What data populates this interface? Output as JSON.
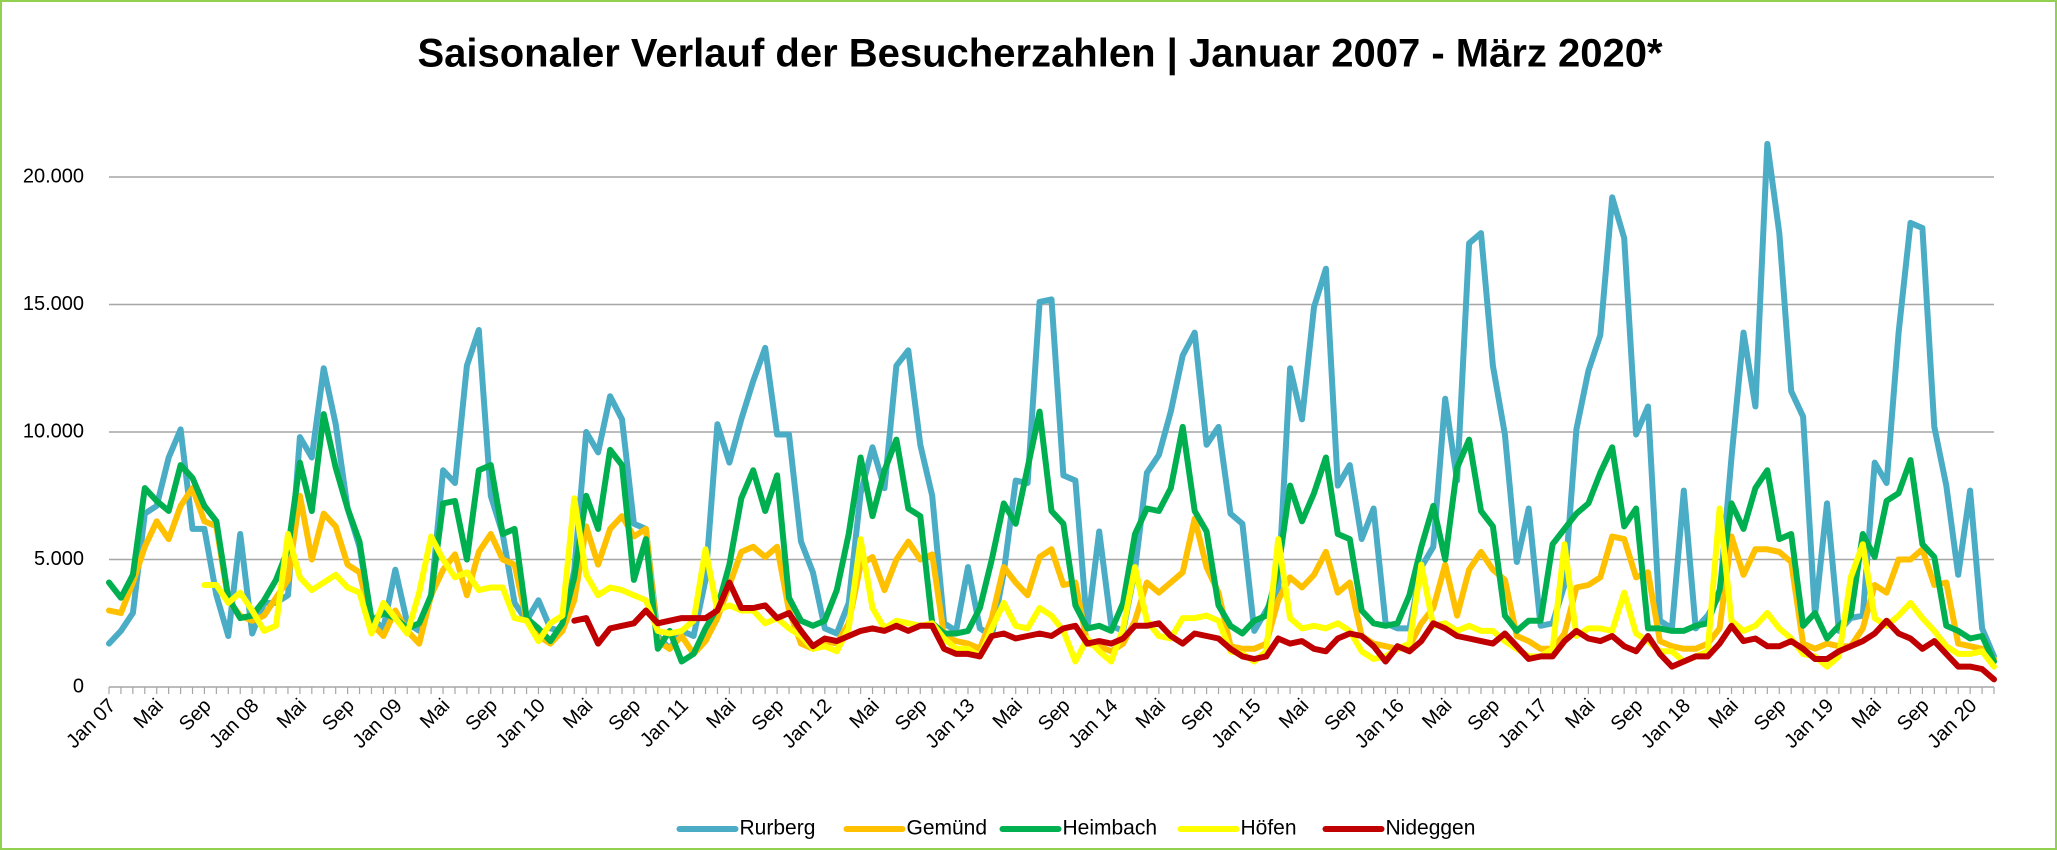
{
  "chart_data": {
    "type": "line",
    "title": "Saisonaler Verlauf der Besucherzahlen | Januar 2007 - März 2020*",
    "categories": [
      "Jan 07",
      null,
      null,
      null,
      "Mai",
      null,
      null,
      null,
      "Sep",
      null,
      null,
      null,
      "Jan 08",
      null,
      null,
      null,
      "Mai",
      null,
      null,
      null,
      "Sep",
      null,
      null,
      null,
      "Jan 09",
      null,
      null,
      null,
      "Mai",
      null,
      null,
      null,
      "Sep",
      null,
      null,
      null,
      "Jan 10",
      null,
      null,
      null,
      "Mai",
      null,
      null,
      null,
      "Sep",
      null,
      null,
      null,
      "Jan 11",
      null,
      null,
      null,
      "Mai",
      null,
      null,
      null,
      "Sep",
      null,
      null,
      null,
      "Jan 12",
      null,
      null,
      null,
      "Mai",
      null,
      null,
      null,
      "Sep",
      null,
      null,
      null,
      "Jan 13",
      null,
      null,
      null,
      "Mai",
      null,
      null,
      null,
      "Sep",
      null,
      null,
      null,
      "Jan 14",
      null,
      null,
      null,
      "Mai",
      null,
      null,
      null,
      "Sep",
      null,
      null,
      null,
      "Jan 15",
      null,
      null,
      null,
      "Mai",
      null,
      null,
      null,
      "Sep",
      null,
      null,
      null,
      "Jan 16",
      null,
      null,
      null,
      "Mai",
      null,
      null,
      null,
      "Sep",
      null,
      null,
      null,
      "Jan 17",
      null,
      null,
      null,
      "Mai",
      null,
      null,
      null,
      "Sep",
      null,
      null,
      null,
      "Jan 18",
      null,
      null,
      null,
      "Mai",
      null,
      null,
      null,
      "Sep",
      null,
      null,
      null,
      "Jan 19",
      null,
      null,
      null,
      "Mai",
      null,
      null,
      null,
      "Sep",
      null,
      null,
      null,
      "Jan 20",
      null,
      null
    ],
    "series": [
      {
        "name": "Rurberg",
        "color": "#4bacc6",
        "values": [
          1700,
          2200,
          2900,
          6800,
          7100,
          9000,
          10100,
          6200,
          6200,
          3600,
          2000,
          6000,
          2100,
          3300,
          3300,
          3600,
          9800,
          9000,
          12500,
          10300,
          7000,
          5500,
          2700,
          2300,
          4600,
          2500,
          2200,
          3600,
          8500,
          8000,
          12600,
          14000,
          7500,
          6000,
          3300,
          2600,
          3400,
          2300,
          2200,
          4600,
          10000,
          9200,
          11400,
          10500,
          6400,
          6200,
          2000,
          1500,
          2200,
          2000,
          4200,
          10300,
          8800,
          10500,
          12000,
          13300,
          9900,
          9900,
          5700,
          4500,
          2300,
          2100,
          3300,
          7600,
          9400,
          7800,
          12600,
          13200,
          9500,
          7500,
          2500,
          2200,
          4700,
          2300,
          2000,
          4500,
          8100,
          8000,
          15100,
          15200,
          8300,
          8100,
          2300,
          6100,
          2400,
          2200,
          4600,
          8400,
          9100,
          10800,
          13000,
          13900,
          9500,
          10200,
          6800,
          6400,
          2200,
          3000,
          3800,
          12500,
          10500,
          14900,
          16400,
          7900,
          8700,
          5800,
          7000,
          2500,
          2300,
          2300,
          4700,
          5500,
          11300,
          8100,
          17400,
          17800,
          12600,
          9900,
          4900,
          7000,
          2400,
          2500,
          4000,
          10100,
          12400,
          13800,
          19200,
          17600,
          9900,
          11000,
          2600,
          2300,
          7700,
          2300,
          2800,
          3600,
          9000,
          13900,
          11000,
          21300,
          17800,
          11600,
          10600,
          2800,
          7200,
          2200,
          2700,
          2800,
          8800,
          8000,
          13900,
          18200,
          18000,
          10200,
          7900,
          4400,
          7700,
          2300,
          1200
        ]
      },
      {
        "name": "Gemünd",
        "color": "#ffc000",
        "values": [
          3000,
          2900,
          4100,
          5500,
          6500,
          5800,
          7100,
          7800,
          6500,
          6300,
          3400,
          2800,
          2600,
          2800,
          3500,
          4200,
          7500,
          5000,
          6800,
          6300,
          4800,
          4500,
          2500,
          2000,
          3000,
          2200,
          1700,
          3600,
          4600,
          5200,
          3600,
          5300,
          6000,
          5000,
          4800,
          2600,
          2000,
          1700,
          2200,
          3400,
          6300,
          4800,
          6200,
          6700,
          5900,
          6200,
          1800,
          1500,
          2000,
          1300,
          1800,
          2700,
          4000,
          5300,
          5500,
          5100,
          5500,
          3000,
          1700,
          1500,
          1800,
          1700,
          2500,
          4800,
          5100,
          3800,
          5000,
          5700,
          5000,
          5200,
          2000,
          1800,
          1700,
          1500,
          2700,
          4700,
          4100,
          3600,
          5100,
          5400,
          4000,
          4100,
          1700,
          1600,
          1400,
          1700,
          2600,
          4100,
          3700,
          4100,
          4500,
          6600,
          4700,
          3700,
          1600,
          1500,
          1500,
          1700,
          3400,
          4300,
          3900,
          4400,
          5300,
          3700,
          4100,
          2000,
          1700,
          1600,
          1500,
          1600,
          2500,
          3100,
          4800,
          2800,
          4600,
          5300,
          4600,
          4200,
          2000,
          1800,
          1500,
          1500,
          2100,
          3900,
          4000,
          4300,
          5900,
          5800,
          4300,
          4500,
          1800,
          1600,
          1500,
          1500,
          1700,
          2300,
          5900,
          4400,
          5400,
          5400,
          5300,
          4900,
          1700,
          1500,
          1700,
          1600,
          1600,
          2300,
          4000,
          3700,
          5000,
          5000,
          5400,
          4000,
          4100,
          1700,
          1600,
          1500,
          1100
        ]
      },
      {
        "name": "Heimbach",
        "color": "#00b050",
        "values": [
          4100,
          3500,
          4400,
          7800,
          7300,
          6900,
          8700,
          8200,
          7100,
          6500,
          3500,
          2700,
          2800,
          3400,
          4200,
          5400,
          8800,
          6900,
          10700,
          8600,
          7000,
          5700,
          2600,
          2900,
          2700,
          2300,
          2500,
          3600,
          7200,
          7300,
          5000,
          8500,
          8700,
          6000,
          6200,
          2700,
          2300,
          1800,
          2500,
          4300,
          7500,
          6200,
          9300,
          8700,
          4200,
          5800,
          1500,
          2200,
          1000,
          1300,
          2300,
          3100,
          4800,
          7400,
          8500,
          6900,
          8300,
          3500,
          2600,
          2400,
          2600,
          3800,
          6000,
          9000,
          6700,
          8500,
          9700,
          7000,
          6700,
          2500,
          2100,
          2100,
          2200,
          3100,
          5000,
          7200,
          6400,
          8600,
          10800,
          6900,
          6400,
          3200,
          2300,
          2400,
          2200,
          3300,
          6000,
          7000,
          6900,
          7800,
          10200,
          6900,
          6100,
          3200,
          2400,
          2100,
          2600,
          2800,
          4600,
          7900,
          6500,
          7600,
          9000,
          6000,
          5800,
          3000,
          2500,
          2400,
          2500,
          3600,
          5500,
          7100,
          5000,
          8600,
          9700,
          6900,
          6300,
          2800,
          2200,
          2600,
          2600,
          5600,
          6200,
          6800,
          7200,
          8400,
          9400,
          6300,
          7000,
          2300,
          2300,
          2200,
          2200,
          2400,
          2500,
          3800,
          7200,
          6200,
          7800,
          8500,
          5800,
          6000,
          2400,
          2900,
          1900,
          2400,
          2800,
          6000,
          5100,
          7300,
          7600,
          8900,
          5600,
          5100,
          2400,
          2200,
          1900,
          2000,
          1000
        ]
      },
      {
        "name": "Höfen",
        "color": "#ffff00",
        "values": [
          null,
          null,
          null,
          null,
          null,
          null,
          null,
          null,
          4000,
          4000,
          3300,
          3700,
          3000,
          2200,
          2400,
          6000,
          4300,
          3800,
          4100,
          4400,
          3900,
          3700,
          2100,
          3300,
          2700,
          2100,
          3700,
          5900,
          5000,
          4300,
          4500,
          3800,
          3900,
          3900,
          2700,
          2600,
          1800,
          2500,
          2800,
          7400,
          4400,
          3600,
          3900,
          3800,
          3600,
          3400,
          2200,
          2100,
          2200,
          2600,
          5400,
          3000,
          3200,
          3000,
          3000,
          2500,
          2700,
          2300,
          2000,
          1500,
          1600,
          1400,
          2300,
          5800,
          3100,
          2300,
          2600,
          2500,
          2400,
          2500,
          1900,
          1500,
          1500,
          1200,
          2300,
          3300,
          2400,
          2300,
          3100,
          2800,
          2200,
          1000,
          1900,
          1400,
          1000,
          2300,
          4700,
          2600,
          2000,
          1900,
          2700,
          2700,
          2800,
          2600,
          1400,
          1300,
          1000,
          1400,
          5800,
          2700,
          2300,
          2400,
          2300,
          2500,
          2200,
          1400,
          1100,
          1200,
          1500,
          1700,
          4800,
          2400,
          2500,
          2200,
          2400,
          2200,
          2200,
          1800,
          1500,
          1200,
          1200,
          1500,
          5600,
          2000,
          2300,
          2300,
          2200,
          3700,
          2100,
          1800,
          1400,
          1400,
          1000,
          1200,
          1400,
          7000,
          2600,
          2200,
          2400,
          2900,
          2300,
          1900,
          1300,
          1200,
          800,
          1200,
          4300,
          5600,
          2700,
          2400,
          2800,
          3300,
          2700,
          2200,
          1600,
          1300,
          1300,
          1400,
          800
        ]
      },
      {
        "name": "Nideggen",
        "color": "#c00000",
        "values": [
          null,
          null,
          null,
          null,
          null,
          null,
          null,
          null,
          null,
          null,
          null,
          null,
          null,
          null,
          null,
          null,
          null,
          null,
          null,
          null,
          null,
          null,
          null,
          null,
          null,
          null,
          null,
          null,
          null,
          null,
          null,
          null,
          null,
          null,
          null,
          null,
          null,
          null,
          null,
          2600,
          2700,
          1700,
          2300,
          2400,
          2500,
          3000,
          2500,
          2600,
          2700,
          2700,
          2700,
          3000,
          4100,
          3100,
          3100,
          3200,
          2700,
          2900,
          2200,
          1600,
          1900,
          1800,
          2000,
          2200,
          2300,
          2200,
          2400,
          2200,
          2400,
          2400,
          1500,
          1300,
          1300,
          1200,
          2000,
          2100,
          1900,
          2000,
          2100,
          2000,
          2300,
          2400,
          1700,
          1800,
          1700,
          1900,
          2400,
          2400,
          2500,
          2000,
          1700,
          2100,
          2000,
          1900,
          1500,
          1200,
          1100,
          1200,
          1900,
          1700,
          1800,
          1500,
          1400,
          1900,
          2100,
          2000,
          1600,
          1000,
          1600,
          1400,
          1800,
          2500,
          2300,
          2000,
          1900,
          1800,
          1700,
          2100,
          1600,
          1100,
          1200,
          1200,
          1800,
          2200,
          1900,
          1800,
          2000,
          1600,
          1400,
          2000,
          1300,
          800,
          1000,
          1200,
          1200,
          1700,
          2400,
          1800,
          1900,
          1600,
          1600,
          1800,
          1500,
          1100,
          1100,
          1400,
          1600,
          1800,
          2100,
          2600,
          2100,
          1900,
          1500,
          1800,
          1300,
          800,
          800,
          700,
          300
        ]
      }
    ],
    "ylim": [
      0,
      22000
    ],
    "yticks": [
      0,
      {
        "value": 5000,
        "label": "5.000"
      },
      {
        "value": 10000,
        "label": "10.000"
      },
      {
        "value": 15000,
        "label": "15.000"
      },
      {
        "value": 20000,
        "label": "20.000"
      }
    ],
    "grid": true,
    "legend": "bottom"
  }
}
